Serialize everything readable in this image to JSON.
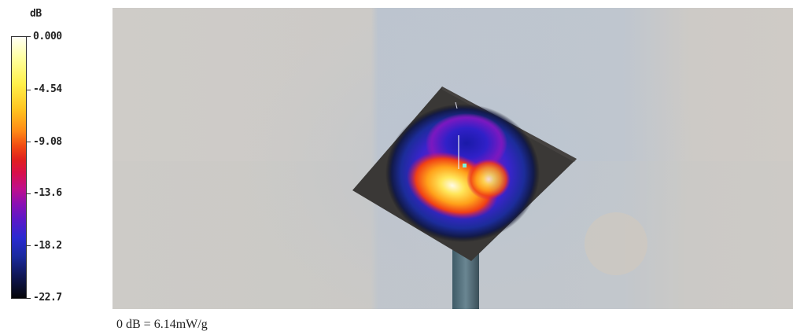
{
  "legend": {
    "unit": "dB",
    "ticks": [
      "0.000",
      "-4.54",
      "-9.08",
      "-13.6",
      "-18.2",
      "-22.7"
    ]
  },
  "caption": "0 dB = 6.14mW/g",
  "colors": {
    "background_wall": "#cfcdca",
    "center_panel": "#b9c3ce",
    "plate": "#3a3836",
    "hot_spot": "#ffd23a",
    "cold_spot": "#2a2ad0"
  }
}
